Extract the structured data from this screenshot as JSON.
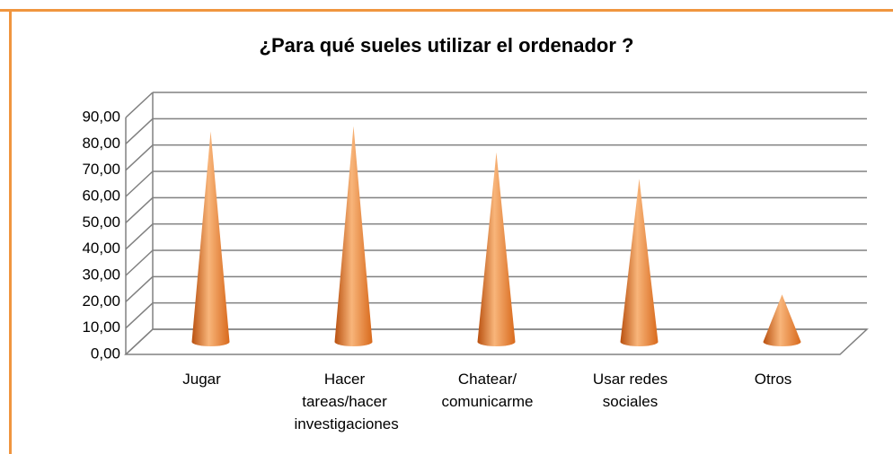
{
  "chart_data": {
    "type": "cone3d",
    "title": "¿Para qué sueles utilizar el ordenador ?",
    "categories": [
      "Jugar",
      "Hacer tareas/hacer investigaciones",
      "Chatear/ comunicarme",
      "Usar redes sociales",
      "Otros"
    ],
    "values": [
      80,
      82,
      72,
      62,
      18
    ],
    "color": "#e8853a",
    "ylim": [
      0,
      90
    ],
    "yticks": [
      {
        "value": 0,
        "label": "0,00"
      },
      {
        "value": 10,
        "label": "10,00"
      },
      {
        "value": 20,
        "label": "20,00"
      },
      {
        "value": 30,
        "label": "30,00"
      },
      {
        "value": 40,
        "label": "40,00"
      },
      {
        "value": 50,
        "label": "50,00"
      },
      {
        "value": 60,
        "label": "60,00"
      },
      {
        "value": 70,
        "label": "70,00"
      },
      {
        "value": 80,
        "label": "80,00"
      },
      {
        "value": 90,
        "label": "90,00"
      }
    ],
    "grid": true
  }
}
